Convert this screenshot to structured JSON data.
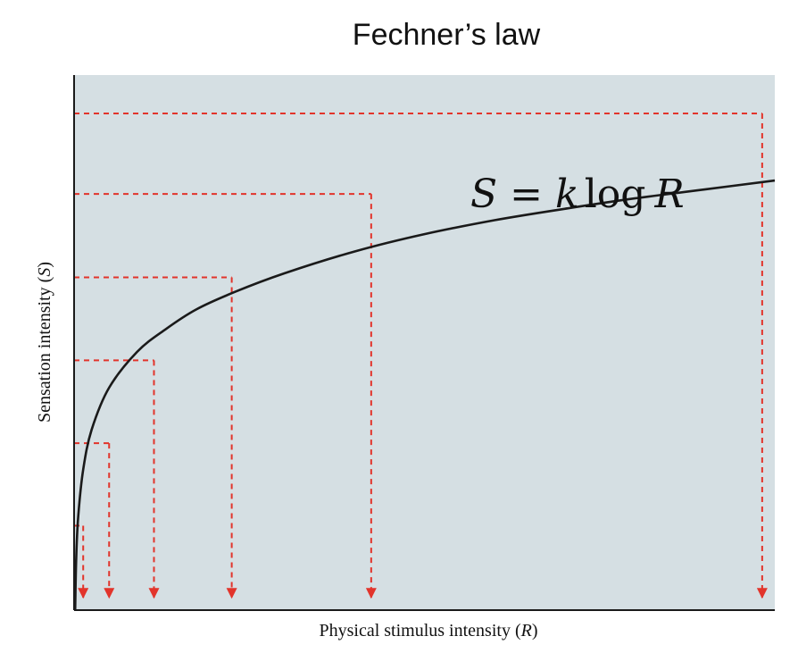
{
  "chart_data": {
    "type": "line",
    "title": "Fechner’s law",
    "xlabel": "Physical stimulus intensity (R)",
    "ylabel": "Sensation intensity (S)",
    "annotation": "S = k log R",
    "xlim": [
      0,
      1
    ],
    "ylim": [
      0,
      1
    ],
    "grid": false,
    "colors": {
      "background": "#d5dfe3",
      "curve": "#1a1a1a",
      "guides": "#e2342b",
      "axes": "#1a1a1a"
    },
    "curve": {
      "x": [
        0.0015,
        0.003,
        0.006,
        0.013,
        0.025,
        0.05,
        0.09,
        0.13,
        0.175,
        0.23,
        0.3,
        0.4,
        0.5,
        0.6,
        0.7,
        0.8,
        0.9,
        1.0
      ],
      "y": [
        0.0,
        0.105,
        0.19,
        0.283,
        0.363,
        0.448,
        0.52,
        0.565,
        0.606,
        0.641,
        0.678,
        0.722,
        0.757,
        0.785,
        0.808,
        0.829,
        0.847,
        0.865
      ]
    },
    "guide_points": {
      "x": [
        0.013,
        0.05,
        0.114,
        0.225,
        0.424,
        0.982
      ],
      "y": [
        0.17,
        0.336,
        0.503,
        0.67,
        0.838,
        1.0
      ]
    }
  }
}
